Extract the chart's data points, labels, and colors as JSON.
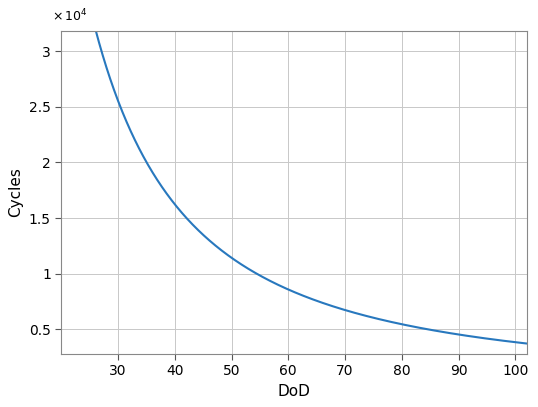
{
  "xlabel": "DoD",
  "ylabel": "Cycles",
  "x_start": 20,
  "x_end": 102,
  "x_ticks": [
    30,
    40,
    50,
    60,
    70,
    80,
    90,
    100
  ],
  "y_ticks": [
    0.5,
    1.0,
    1.5,
    2.0,
    2.5,
    3.0
  ],
  "ylim_display": [
    0.28,
    3.18
  ],
  "xlim": [
    20,
    102
  ],
  "line_color": "#2878BE",
  "line_width": 1.5,
  "grid_color": "#C8C8C8",
  "background_color": "#FFFFFF",
  "power_law_A": 5416000.0,
  "power_law_b": 1.575,
  "scale_factor": 10000.0,
  "xlabel_fontsize": 11,
  "ylabel_fontsize": 11,
  "tick_fontsize": 10,
  "exponent_fontsize": 9
}
